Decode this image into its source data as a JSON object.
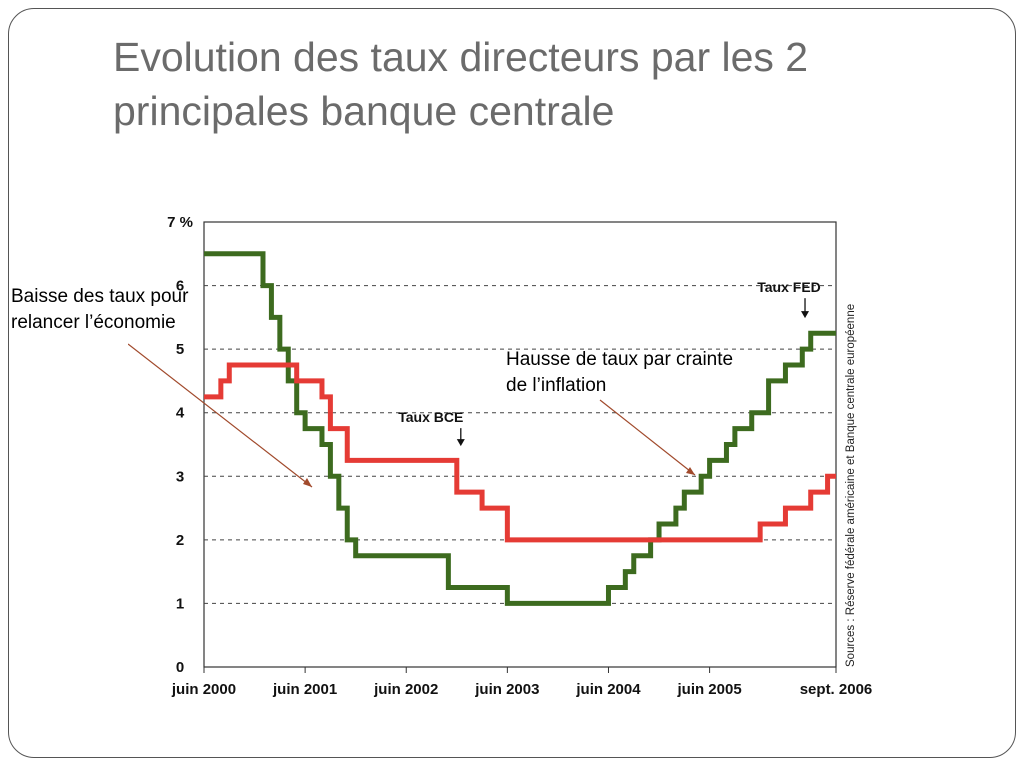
{
  "slide": {
    "title": "Evolution des taux directeurs par les 2 principales banque centrale"
  },
  "annotations": {
    "left": "Baisse des taux pour relancer l’économie",
    "right": "Hausse de taux par crainte de l’inflation"
  },
  "chart_data": {
    "type": "line",
    "step": true,
    "title": "",
    "xlabel": "",
    "ylabel": "",
    "x_tick_labels": [
      "juin 2000",
      "juin 2001",
      "juin 2002",
      "juin 2003",
      "juin 2004",
      "juin 2005",
      "sept. 2006"
    ],
    "y_tick_labels": [
      "0",
      "1",
      "2",
      "3",
      "4",
      "5",
      "6",
      "7 %"
    ],
    "xlim": [
      "2000-06",
      "2006-09"
    ],
    "ylim": [
      0,
      7
    ],
    "grid": "dashed horizontal",
    "source": "Sources : Réserve fédérale américaine et Banque centrale européenne",
    "series": [
      {
        "name": "Taux FED",
        "color": "#3d6b1f",
        "points": [
          [
            "2000-06",
            6.5
          ],
          [
            "2001-01",
            6.0
          ],
          [
            "2001-02",
            5.5
          ],
          [
            "2001-03",
            5.0
          ],
          [
            "2001-04",
            4.5
          ],
          [
            "2001-05",
            4.0
          ],
          [
            "2001-06",
            3.75
          ],
          [
            "2001-08",
            3.5
          ],
          [
            "2001-09",
            3.0
          ],
          [
            "2001-10",
            2.5
          ],
          [
            "2001-11",
            2.0
          ],
          [
            "2001-12",
            1.75
          ],
          [
            "2002-11",
            1.25
          ],
          [
            "2003-06",
            1.0
          ],
          [
            "2004-06",
            1.25
          ],
          [
            "2004-08",
            1.5
          ],
          [
            "2004-09",
            1.75
          ],
          [
            "2004-11",
            2.0
          ],
          [
            "2004-12",
            2.25
          ],
          [
            "2005-02",
            2.5
          ],
          [
            "2005-03",
            2.75
          ],
          [
            "2005-05",
            3.0
          ],
          [
            "2005-06",
            3.25
          ],
          [
            "2005-08",
            3.5
          ],
          [
            "2005-09",
            3.75
          ],
          [
            "2005-11",
            4.0
          ],
          [
            "2006-01",
            4.5
          ],
          [
            "2006-03",
            4.75
          ],
          [
            "2006-05",
            5.0
          ],
          [
            "2006-06",
            5.25
          ],
          [
            "2006-09",
            5.25
          ]
        ]
      },
      {
        "name": "Taux BCE",
        "color": "#e53b35",
        "points": [
          [
            "2000-06",
            4.25
          ],
          [
            "2000-08",
            4.5
          ],
          [
            "2000-09",
            4.75
          ],
          [
            "2001-05",
            4.5
          ],
          [
            "2001-08",
            4.25
          ],
          [
            "2001-09",
            3.75
          ],
          [
            "2001-11",
            3.25
          ],
          [
            "2002-12",
            2.75
          ],
          [
            "2003-03",
            2.5
          ],
          [
            "2003-06",
            2.0
          ],
          [
            "2005-12",
            2.25
          ],
          [
            "2006-03",
            2.5
          ],
          [
            "2006-06",
            2.75
          ],
          [
            "2006-08",
            3.0
          ],
          [
            "2006-09",
            3.0
          ]
        ]
      }
    ]
  }
}
